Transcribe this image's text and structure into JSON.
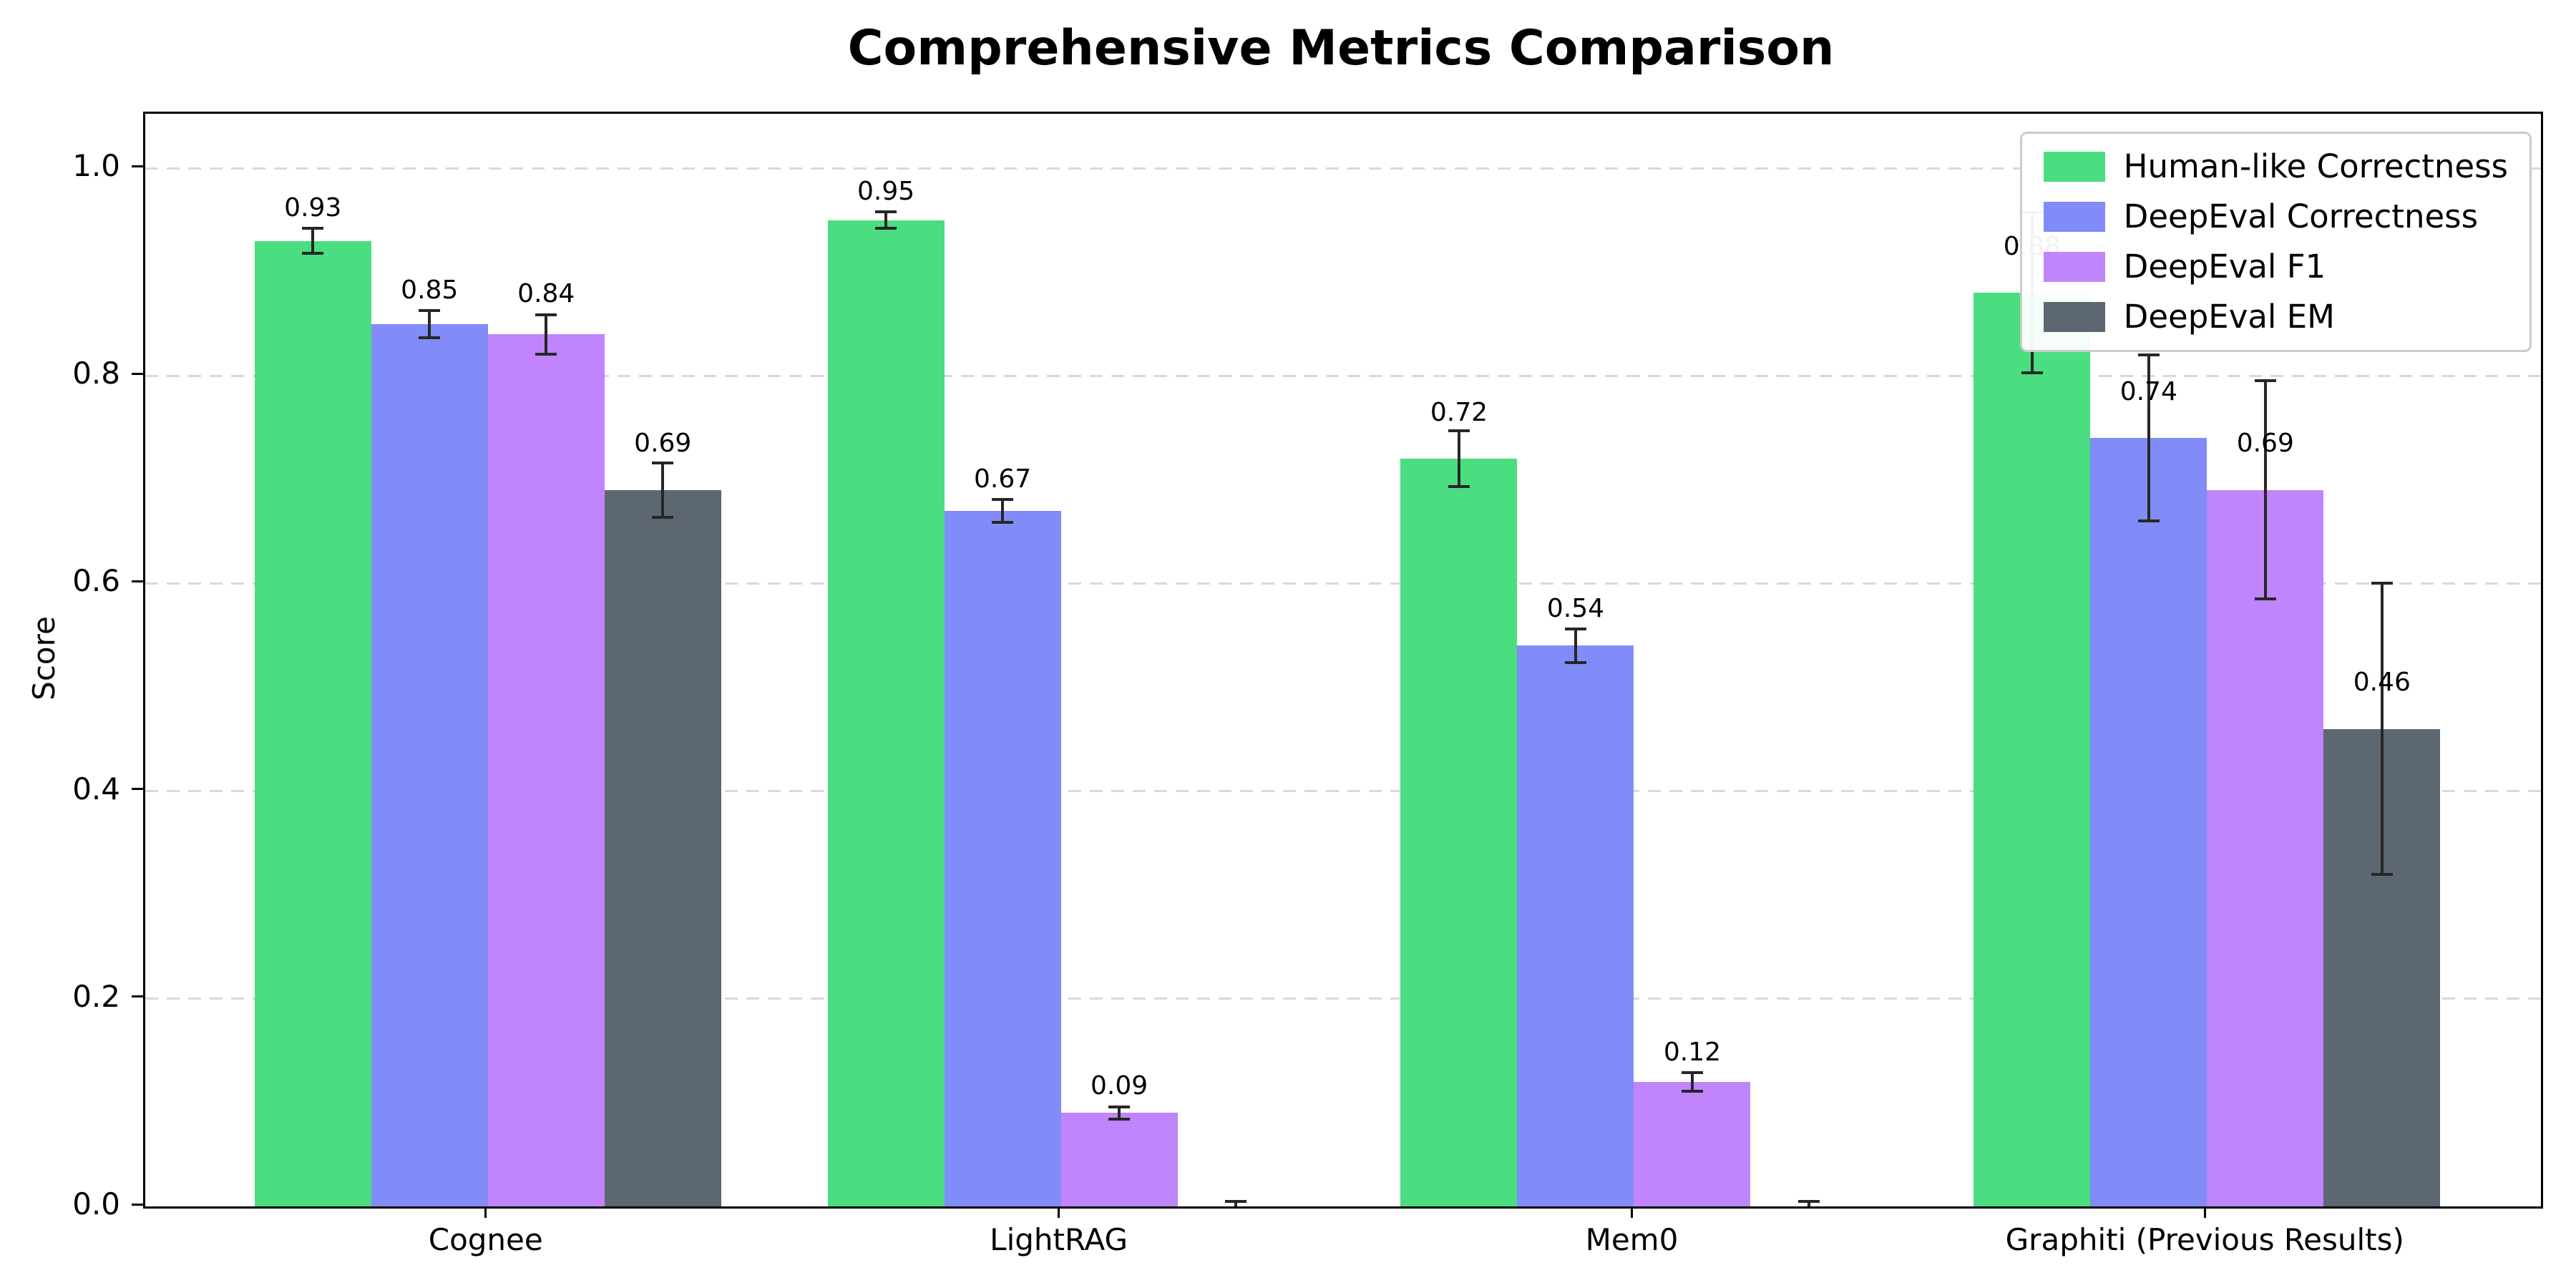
{
  "title": "Comprehensive Metrics Comparison",
  "ylabel": "Score",
  "chart_data": {
    "type": "bar",
    "title": "Comprehensive Metrics Comparison",
    "xlabel": "",
    "ylabel": "Score",
    "ylim": [
      0,
      1.05
    ],
    "yticks": [
      0,
      0.2,
      0.4,
      0.6,
      0.8,
      1.0
    ],
    "grid": "horizontal dashed",
    "legend_position": "upper right",
    "categories": [
      "Cognee",
      "LightRAG",
      "Mem0",
      "Graphiti (Previous Results)"
    ],
    "series": [
      {
        "name": "Human-like Correctness",
        "color": "#4ade80",
        "values": [
          0.93,
          0.95,
          0.72,
          0.88
        ],
        "errors": [
          0.012,
          0.008,
          0.027,
          0.077
        ],
        "labels": [
          "0.93",
          "0.95",
          "0.72",
          "0.88"
        ]
      },
      {
        "name": "DeepEval Correctness",
        "color": "#818cf8",
        "values": [
          0.85,
          0.67,
          0.54,
          0.74
        ],
        "errors": [
          0.013,
          0.011,
          0.016,
          0.08
        ],
        "labels": [
          "0.85",
          "0.67",
          "0.54",
          "0.74"
        ]
      },
      {
        "name": "DeepEval F1",
        "color": "#c084fc",
        "values": [
          0.84,
          0.09,
          0.12,
          0.69
        ],
        "errors": [
          0.019,
          0.006,
          0.009,
          0.105
        ],
        "labels": [
          "0.84",
          "0.09",
          "0.12",
          "0.69"
        ]
      },
      {
        "name": "DeepEval EM",
        "color": "#5d6772",
        "values": [
          0.69,
          0.0,
          0.0,
          0.46
        ],
        "errors": [
          0.026,
          0.005,
          0.005,
          0.14
        ],
        "labels": [
          "0.69",
          "",
          "",
          "0.46"
        ]
      }
    ],
    "colors": {
      "error_bar": "#262626",
      "grid": "#d9d9d9",
      "axis": "#000000",
      "legend_border": "#cccccc",
      "background": "#ffffff"
    }
  }
}
